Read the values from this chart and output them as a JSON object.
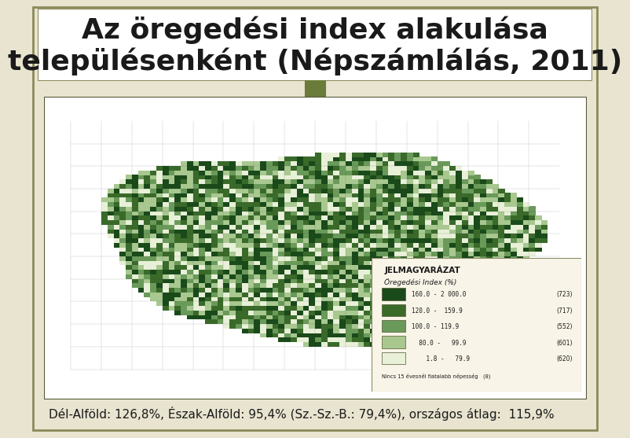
{
  "title_line1": "Az öregedési index alakulása",
  "title_line2": "településenként (Népszámlálás, 2011)",
  "title_fontsize": 26,
  "title_color": "#1a1a1a",
  "title_font_weight": "bold",
  "bg_color": "#e8e4d0",
  "header_bg": "#ffffff",
  "footer_text": "Dél-Alföld: 126,8%, Észak-Alföld: 95,4% (Sz.-Sz.-B.: 79,4%), országos átlag:  115,9%",
  "footer_bg": "#8aaa6a",
  "footer_text_color": "#1a1a1a",
  "footer_fontsize": 11,
  "border_color": "#8a8a5a",
  "icon_color": "#6b7c3a",
  "legend_title": "JELMAGYARÁZAT",
  "legend_subtitle": "Öregedési Index (%)",
  "legend_items": [
    {
      "label": "160.0 - 2 000.0",
      "count": "(723)",
      "color": "#1a4a1a"
    },
    {
      "label": "120.0 -  159.9",
      "count": "(717)",
      "color": "#3a6a2a"
    },
    {
      "label": "100.0 - 119.9",
      "count": "(552)",
      "color": "#6a9a5a"
    },
    {
      "label": "  80.0 -   99.9",
      "count": "(601)",
      "color": "#a8c890"
    },
    {
      "label": "    1.8 -   79.9",
      "count": "(620)",
      "color": "#e8f0d8"
    }
  ],
  "legend_extra": "Nincs 15 évesnél fiatalabb népesség   (8)",
  "map_border_color": "#555533",
  "map_bg": "#ffffff",
  "separator_color": "#8a8a5a",
  "weights": [
    723,
    717,
    552,
    601,
    620
  ],
  "nx": 80,
  "ny": 55,
  "random_seed": 42
}
